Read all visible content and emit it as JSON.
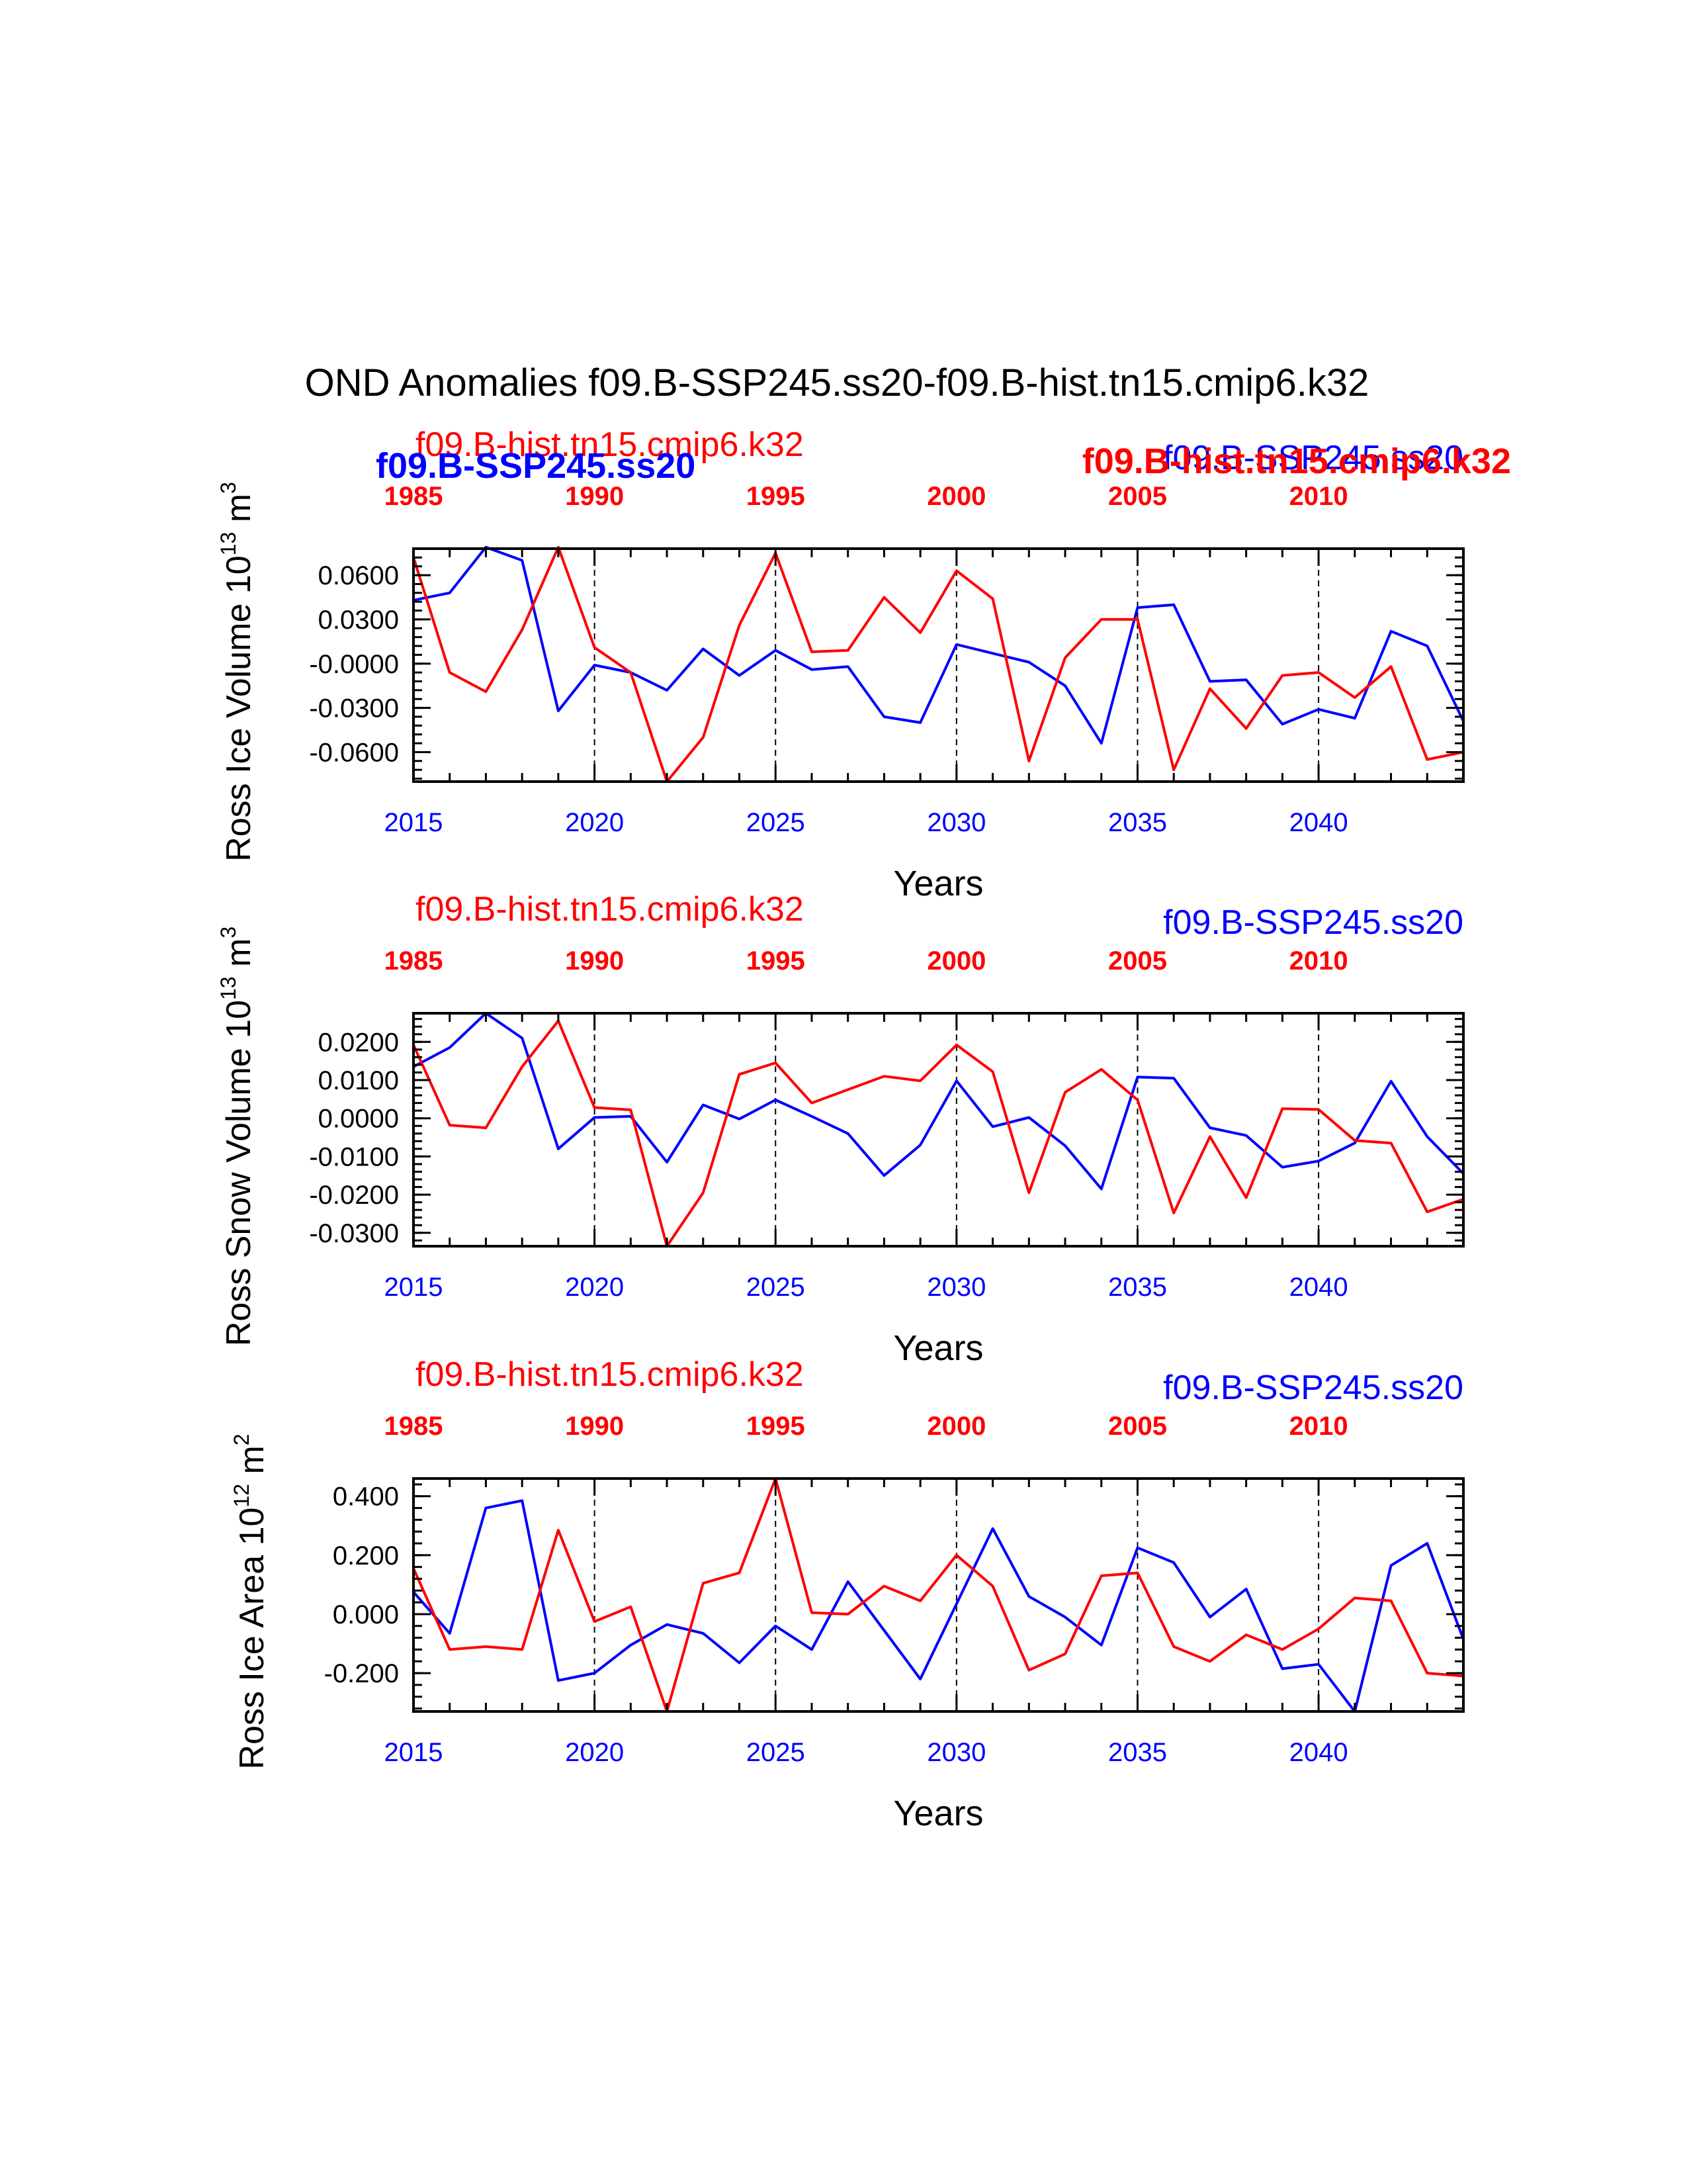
{
  "title": "OND Anomalies f09.B-SSP245.ss20-f09.B-hist.tn15.cmip6.k32",
  "legend_overlay": {
    "hist_bold": "f09.B-hist.tn15.cmip6.k32",
    "ssp_bold": "f09.B-SSP245.ss20"
  },
  "colors": {
    "ssp": "#0000ff",
    "hist": "#ff0000",
    "axis": "#000000"
  },
  "chart_data": [
    {
      "type": "line",
      "ylabel_main": "Ross Ice Volume 10",
      "ylabel_exp": "13",
      "ylabel_unit": " m",
      "ylabel_unit_exp": "3",
      "xlabel": "Years",
      "hist_label": "f09.B-hist.tn15.cmip6.k32",
      "ssp_label": "f09.B-SSP245.ss20",
      "xlim": [
        2015,
        2044
      ],
      "ylim": [
        -0.08,
        0.078
      ],
      "bottom_ticks": [
        "2015",
        "2020",
        "2025",
        "2030",
        "2035",
        "2040"
      ],
      "top_ticks": [
        "1985",
        "1990",
        "1995",
        "2000",
        "2005",
        "2010"
      ],
      "y_ticks": [
        0.06,
        0.03,
        0.0,
        -0.03,
        -0.06
      ],
      "y_tick_labels": [
        "0.0600",
        "0.0300",
        "-0.0000",
        "-0.0300",
        "-0.0600"
      ],
      "series": [
        {
          "name": "f09.B-SSP245.ss20",
          "key": "ssp",
          "values": [
            0.043,
            0.048,
            0.079,
            0.07,
            -0.032,
            -0.001,
            -0.006,
            -0.018,
            0.01,
            -0.008,
            0.009,
            -0.004,
            -0.002,
            -0.036,
            -0.04,
            0.013,
            0.007,
            0.001,
            -0.015,
            -0.054,
            0.038,
            0.04,
            -0.012,
            -0.011,
            -0.041,
            -0.031,
            -0.037,
            0.022,
            0.012,
            -0.039
          ]
        },
        {
          "name": "f09.B-hist.tn15.cmip6.k32",
          "key": "hist",
          "values": [
            0.072,
            -0.006,
            -0.019,
            0.023,
            0.079,
            0.011,
            -0.006,
            -0.08,
            -0.05,
            0.026,
            0.075,
            0.008,
            0.009,
            0.045,
            0.021,
            0.063,
            0.044,
            -0.066,
            0.004,
            0.03,
            0.03,
            -0.072,
            -0.017,
            -0.044,
            -0.008,
            -0.006,
            -0.023,
            -0.002,
            -0.065,
            -0.06
          ]
        }
      ]
    },
    {
      "type": "line",
      "ylabel_main": "Ross Snow Volume 10",
      "ylabel_exp": "13",
      "ylabel_unit": " m",
      "ylabel_unit_exp": "3",
      "xlabel": "Years",
      "hist_label": "f09.B-hist.tn15.cmip6.k32",
      "ssp_label": "f09.B-SSP245.ss20",
      "xlim": [
        2015,
        2044
      ],
      "ylim": [
        -0.0335,
        0.0275
      ],
      "bottom_ticks": [
        "2015",
        "2020",
        "2025",
        "2030",
        "2035",
        "2040"
      ],
      "top_ticks": [
        "1985",
        "1990",
        "1995",
        "2000",
        "2005",
        "2010"
      ],
      "y_ticks": [
        0.02,
        0.01,
        0.0,
        -0.01,
        -0.02,
        -0.03
      ],
      "y_tick_labels": [
        "0.0200",
        "0.0100",
        "0.0000",
        "-0.0100",
        "-0.0200",
        "-0.0300"
      ],
      "series": [
        {
          "name": "f09.B-SSP245.ss20",
          "key": "ssp",
          "values": [
            0.0135,
            0.0185,
            0.0275,
            0.021,
            -0.008,
            0.0002,
            0.0005,
            -0.0115,
            0.0035,
            -0.0002,
            0.0048,
            0.0005,
            -0.004,
            -0.015,
            -0.007,
            0.0098,
            -0.0022,
            0.0002,
            -0.0072,
            -0.0185,
            0.0108,
            0.0105,
            -0.0025,
            -0.0045,
            -0.0128,
            -0.0112,
            -0.0065,
            0.0097,
            -0.0048,
            -0.0145
          ]
        },
        {
          "name": "f09.B-hist.tn15.cmip6.k32",
          "key": "hist",
          "values": [
            0.0192,
            -0.0018,
            -0.0025,
            0.0135,
            0.0255,
            0.0028,
            0.0022,
            -0.0335,
            -0.0195,
            0.0115,
            0.0145,
            0.004,
            0.0075,
            0.011,
            0.0098,
            0.0192,
            0.0122,
            -0.0195,
            0.0068,
            0.0128,
            0.0048,
            -0.0248,
            -0.0048,
            -0.0208,
            0.0025,
            0.0023,
            -0.0058,
            -0.0065,
            -0.0245,
            -0.0212
          ]
        }
      ]
    },
    {
      "type": "line",
      "ylabel_main": "Ross Ice Area 10",
      "ylabel_exp": "12",
      "ylabel_unit": " m",
      "ylabel_unit_exp": "2",
      "xlabel": "Years",
      "hist_label": "f09.B-hist.tn15.cmip6.k32",
      "ssp_label": "f09.B-SSP245.ss20",
      "xlim": [
        2015,
        2044
      ],
      "ylim": [
        -0.33,
        0.46
      ],
      "bottom_ticks": [
        "2015",
        "2020",
        "2025",
        "2030",
        "2035",
        "2040"
      ],
      "top_ticks": [
        "1985",
        "1990",
        "1995",
        "2000",
        "2005",
        "2010"
      ],
      "y_ticks": [
        0.4,
        0.2,
        0.0,
        -0.2
      ],
      "y_tick_labels": [
        "0.400",
        "0.200",
        "0.000",
        "-0.200"
      ],
      "series": [
        {
          "name": "f09.B-SSP245.ss20",
          "key": "ssp",
          "values": [
            0.075,
            -0.065,
            0.36,
            0.385,
            -0.225,
            -0.2,
            -0.105,
            -0.035,
            -0.065,
            -0.165,
            -0.04,
            -0.12,
            0.11,
            -0.055,
            -0.22,
            0.035,
            0.29,
            0.06,
            -0.01,
            -0.105,
            0.225,
            0.175,
            -0.01,
            0.085,
            -0.185,
            -0.17,
            -0.33,
            0.165,
            0.24,
            -0.085
          ]
        },
        {
          "name": "f09.B-hist.tn15.cmip6.k32",
          "key": "hist",
          "values": [
            0.155,
            -0.12,
            -0.11,
            -0.12,
            0.285,
            -0.025,
            0.025,
            -0.33,
            0.105,
            0.14,
            0.46,
            0.005,
            0.0,
            0.095,
            0.045,
            0.2,
            0.095,
            -0.19,
            -0.135,
            0.13,
            0.14,
            -0.11,
            -0.16,
            -0.07,
            -0.12,
            -0.05,
            0.055,
            0.045,
            -0.2,
            -0.21
          ]
        }
      ]
    }
  ]
}
